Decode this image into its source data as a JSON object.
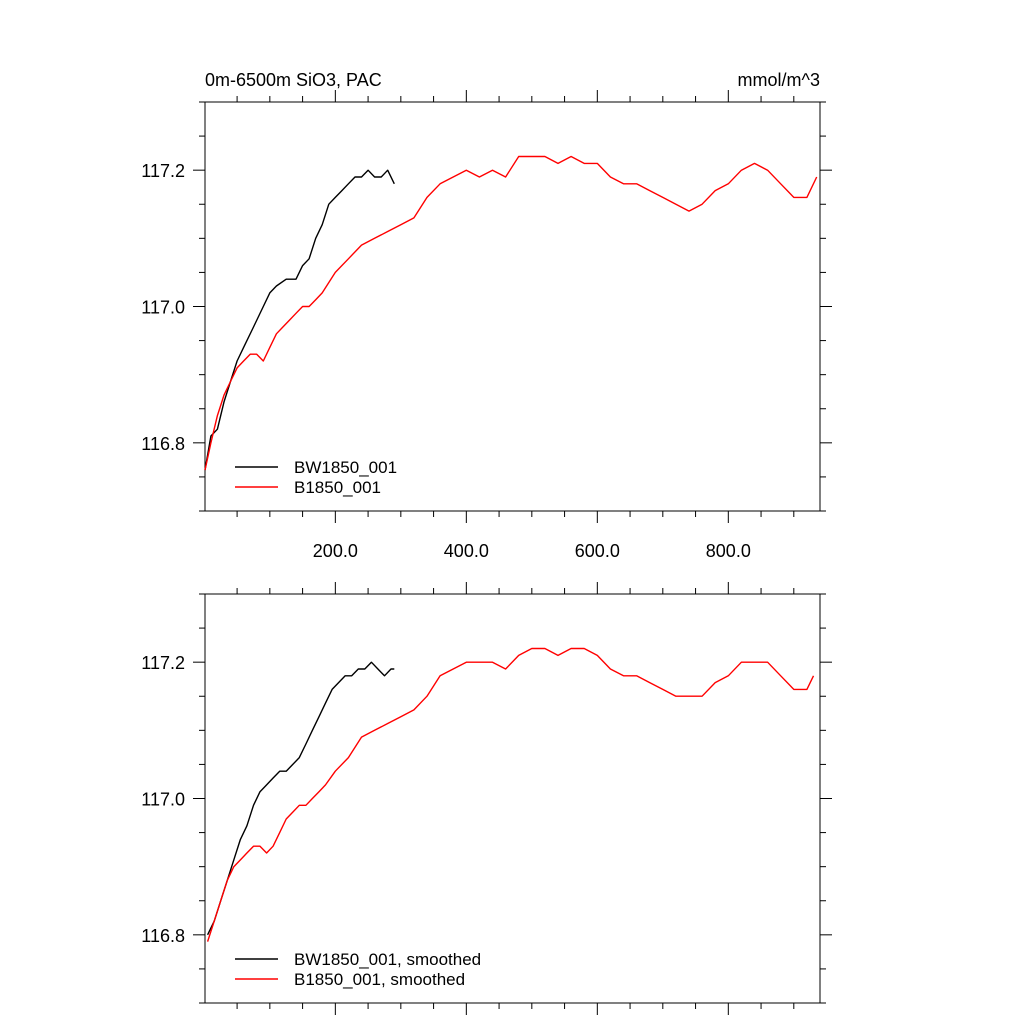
{
  "header": {
    "title_left": "0m-6500m SiO3, PAC",
    "title_right": "mmol/m^3"
  },
  "chart_data": [
    {
      "type": "line",
      "title": "0m-6500m SiO3, PAC",
      "units": "mmol/m^3",
      "xlim": [
        1,
        940
      ],
      "ylim": [
        116.7,
        117.3
      ],
      "x_ticks": [
        200,
        400,
        600,
        800
      ],
      "x_tick_labels": [
        "200.0",
        "400.0",
        "600.0",
        "800.0"
      ],
      "y_ticks": [
        116.8,
        117.0,
        117.2
      ],
      "y_tick_labels": [
        "116.8",
        "117.0",
        "117.2"
      ],
      "legend_position": "bottom-left",
      "series": [
        {
          "name": "BW1850_001",
          "color": "#000000",
          "x": [
            1,
            10,
            20,
            30,
            40,
            50,
            60,
            75,
            90,
            100,
            110,
            125,
            140,
            150,
            160,
            170,
            180,
            190,
            200,
            210,
            220,
            230,
            240,
            250,
            260,
            270,
            280,
            290
          ],
          "y": [
            116.76,
            116.81,
            116.82,
            116.86,
            116.89,
            116.92,
            116.94,
            116.97,
            117.0,
            117.02,
            117.03,
            117.04,
            117.04,
            117.06,
            117.07,
            117.1,
            117.12,
            117.15,
            117.16,
            117.17,
            117.18,
            117.19,
            117.19,
            117.2,
            117.19,
            117.19,
            117.2,
            117.18
          ]
        },
        {
          "name": "B1850_001",
          "color": "#ff0000",
          "x": [
            1,
            10,
            20,
            30,
            40,
            50,
            60,
            70,
            80,
            90,
            100,
            110,
            120,
            130,
            140,
            150,
            160,
            170,
            180,
            200,
            220,
            240,
            260,
            280,
            300,
            320,
            340,
            360,
            380,
            400,
            420,
            440,
            460,
            480,
            500,
            520,
            540,
            560,
            580,
            600,
            620,
            640,
            660,
            680,
            700,
            720,
            740,
            760,
            780,
            800,
            820,
            840,
            860,
            880,
            900,
            920,
            935
          ],
          "y": [
            116.76,
            116.8,
            116.84,
            116.87,
            116.89,
            116.91,
            116.92,
            116.93,
            116.93,
            116.92,
            116.94,
            116.96,
            116.97,
            116.98,
            116.99,
            117.0,
            117.0,
            117.01,
            117.02,
            117.05,
            117.07,
            117.09,
            117.1,
            117.11,
            117.12,
            117.13,
            117.16,
            117.18,
            117.19,
            117.2,
            117.19,
            117.2,
            117.19,
            117.22,
            117.22,
            117.22,
            117.21,
            117.22,
            117.21,
            117.21,
            117.19,
            117.18,
            117.18,
            117.17,
            117.16,
            117.15,
            117.14,
            117.15,
            117.17,
            117.18,
            117.2,
            117.21,
            117.2,
            117.18,
            117.16,
            117.16,
            117.19
          ]
        }
      ]
    },
    {
      "type": "line",
      "xlim": [
        1,
        940
      ],
      "ylim": [
        116.7,
        117.3
      ],
      "y_ticks": [
        116.8,
        117.0,
        117.2
      ],
      "y_tick_labels": [
        "116.8",
        "117.0",
        "117.2"
      ],
      "legend_position": "bottom-left",
      "series": [
        {
          "name": "BW1850_001, smoothed",
          "color": "#000000",
          "x": [
            5,
            15,
            25,
            35,
            45,
            55,
            65,
            75,
            85,
            95,
            105,
            115,
            125,
            135,
            145,
            155,
            165,
            175,
            185,
            195,
            205,
            215,
            225,
            235,
            245,
            255,
            265,
            275,
            285,
            290
          ],
          "y": [
            116.8,
            116.82,
            116.85,
            116.88,
            116.91,
            116.94,
            116.96,
            116.99,
            117.01,
            117.02,
            117.03,
            117.04,
            117.04,
            117.05,
            117.06,
            117.08,
            117.1,
            117.12,
            117.14,
            117.16,
            117.17,
            117.18,
            117.18,
            117.19,
            117.19,
            117.2,
            117.19,
            117.18,
            117.19,
            117.19
          ]
        },
        {
          "name": "B1850_001, smoothed",
          "color": "#ff0000",
          "x": [
            5,
            15,
            25,
            35,
            45,
            55,
            65,
            75,
            85,
            95,
            105,
            115,
            125,
            135,
            145,
            155,
            165,
            175,
            185,
            200,
            220,
            240,
            260,
            280,
            300,
            320,
            340,
            360,
            380,
            400,
            420,
            440,
            460,
            480,
            500,
            520,
            540,
            560,
            580,
            600,
            620,
            640,
            660,
            680,
            700,
            720,
            740,
            760,
            780,
            800,
            820,
            840,
            860,
            880,
            900,
            920,
            930
          ],
          "y": [
            116.79,
            116.82,
            116.85,
            116.88,
            116.9,
            116.91,
            116.92,
            116.93,
            116.93,
            116.92,
            116.93,
            116.95,
            116.97,
            116.98,
            116.99,
            116.99,
            117.0,
            117.01,
            117.02,
            117.04,
            117.06,
            117.09,
            117.1,
            117.11,
            117.12,
            117.13,
            117.15,
            117.18,
            117.19,
            117.2,
            117.2,
            117.2,
            117.19,
            117.21,
            117.22,
            117.22,
            117.21,
            117.22,
            117.22,
            117.21,
            117.19,
            117.18,
            117.18,
            117.17,
            117.16,
            117.15,
            117.15,
            117.15,
            117.17,
            117.18,
            117.2,
            117.2,
            117.2,
            117.18,
            117.16,
            117.16,
            117.18
          ]
        }
      ]
    }
  ]
}
